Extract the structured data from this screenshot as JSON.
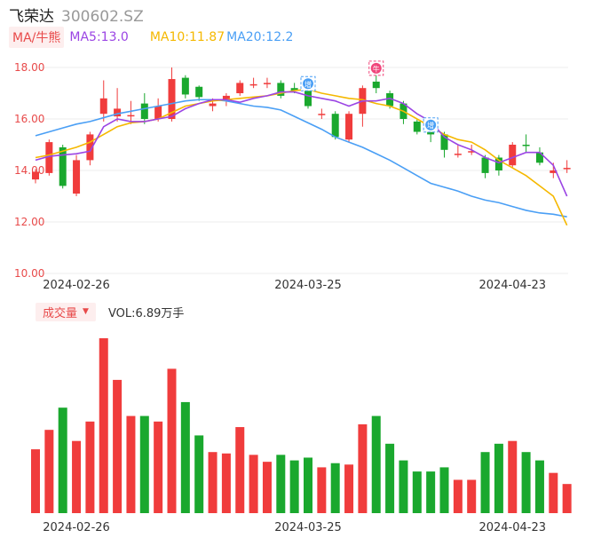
{
  "header": {
    "name": "飞荣达",
    "code": "300602.SZ"
  },
  "ma_legend": {
    "badge": "MA/牛熊",
    "items": [
      {
        "label": "MA5:13.0",
        "color": "#9b45e4"
      },
      {
        "label": "MA10:11.87",
        "color": "#f5b800"
      },
      {
        "label": "MA20:12.2",
        "color": "#4a9ff5"
      }
    ]
  },
  "vol_legend": {
    "badge": "成交量",
    "caret": "▼",
    "text": "VOL:6.89万手"
  },
  "markers": [
    {
      "label": "增",
      "index": 20,
      "color": "#4a9ff5"
    },
    {
      "label": "牛",
      "index": 25,
      "color": "#f0457a"
    },
    {
      "label": "增",
      "index": 29,
      "color": "#4a9ff5"
    }
  ],
  "colors": {
    "up": "#f03c3c",
    "down": "#1aa82e",
    "grid": "#eeeeee",
    "axis_label_price": "#e84a4a",
    "axis_label_date": "#333333"
  },
  "chart_data": {
    "type": "candlestick",
    "y_axis": {
      "min": 10,
      "max": 18,
      "ticks": [
        "10.00",
        "12.00",
        "14.00",
        "16.00",
        "18.00"
      ]
    },
    "x_ticks": [
      {
        "label": "2024-02-26",
        "index": 3
      },
      {
        "label": "2024-03-25",
        "index": 20
      },
      {
        "label": "2024-04-23",
        "index": 35
      }
    ],
    "candles": [
      {
        "o": 13.65,
        "c": 13.95,
        "h": 14.05,
        "l": 13.5,
        "v": 2.3
      },
      {
        "o": 13.9,
        "c": 15.1,
        "h": 15.2,
        "l": 13.8,
        "v": 3.0
      },
      {
        "o": 14.9,
        "c": 13.4,
        "h": 15.0,
        "l": 13.3,
        "v": 3.8
      },
      {
        "o": 13.1,
        "c": 14.4,
        "h": 14.6,
        "l": 13.0,
        "v": 2.6
      },
      {
        "o": 14.4,
        "c": 15.4,
        "h": 15.5,
        "l": 14.2,
        "v": 3.3
      },
      {
        "o": 16.2,
        "c": 16.8,
        "h": 17.5,
        "l": 15.9,
        "v": 6.3
      },
      {
        "o": 16.1,
        "c": 16.4,
        "h": 17.2,
        "l": 15.9,
        "v": 4.8
      },
      {
        "o": 16.1,
        "c": 16.15,
        "h": 16.7,
        "l": 15.8,
        "v": 3.5
      },
      {
        "o": 16.6,
        "c": 16.0,
        "h": 17.0,
        "l": 15.8,
        "v": 3.5
      },
      {
        "o": 16.0,
        "c": 16.5,
        "h": 16.8,
        "l": 15.9,
        "v": 3.3
      },
      {
        "o": 16.0,
        "c": 17.55,
        "h": 18.0,
        "l": 15.9,
        "v": 5.2
      },
      {
        "o": 17.6,
        "c": 16.95,
        "h": 17.7,
        "l": 16.8,
        "v": 4.0
      },
      {
        "o": 17.25,
        "c": 16.85,
        "h": 17.3,
        "l": 16.7,
        "v": 2.8
      },
      {
        "o": 16.5,
        "c": 16.6,
        "h": 16.8,
        "l": 16.3,
        "v": 2.2
      },
      {
        "o": 16.7,
        "c": 16.9,
        "h": 17.0,
        "l": 16.5,
        "v": 2.15
      },
      {
        "o": 17.0,
        "c": 17.4,
        "h": 17.5,
        "l": 16.9,
        "v": 3.1
      },
      {
        "o": 17.35,
        "c": 17.35,
        "h": 17.6,
        "l": 17.2,
        "v": 2.1
      },
      {
        "o": 17.35,
        "c": 17.4,
        "h": 17.6,
        "l": 17.2,
        "v": 1.85
      },
      {
        "o": 17.4,
        "c": 16.9,
        "h": 17.5,
        "l": 16.8,
        "v": 2.1
      },
      {
        "o": 17.2,
        "c": 17.1,
        "h": 17.4,
        "l": 17.0,
        "v": 1.9
      },
      {
        "o": 17.2,
        "c": 16.5,
        "h": 17.3,
        "l": 16.4,
        "v": 2.0
      },
      {
        "o": 16.15,
        "c": 16.2,
        "h": 16.4,
        "l": 16.0,
        "v": 1.65
      },
      {
        "o": 16.2,
        "c": 15.3,
        "h": 16.3,
        "l": 15.2,
        "v": 1.8
      },
      {
        "o": 15.2,
        "c": 16.2,
        "h": 16.3,
        "l": 15.1,
        "v": 1.75
      },
      {
        "o": 16.2,
        "c": 17.2,
        "h": 17.3,
        "l": 15.7,
        "v": 3.2
      },
      {
        "o": 17.45,
        "c": 17.2,
        "h": 17.9,
        "l": 17.0,
        "v": 3.5
      },
      {
        "o": 17.0,
        "c": 16.5,
        "h": 17.1,
        "l": 16.4,
        "v": 2.5
      },
      {
        "o": 16.6,
        "c": 16.0,
        "h": 16.7,
        "l": 15.8,
        "v": 1.9
      },
      {
        "o": 15.9,
        "c": 15.5,
        "h": 16.0,
        "l": 15.4,
        "v": 1.5
      },
      {
        "o": 15.55,
        "c": 15.4,
        "h": 15.7,
        "l": 15.1,
        "v": 1.5
      },
      {
        "o": 15.4,
        "c": 14.8,
        "h": 15.5,
        "l": 14.5,
        "v": 1.65
      },
      {
        "o": 14.6,
        "c": 14.65,
        "h": 15.0,
        "l": 14.5,
        "v": 1.2
      },
      {
        "o": 14.7,
        "c": 14.75,
        "h": 15.0,
        "l": 14.6,
        "v": 1.2
      },
      {
        "o": 14.5,
        "c": 13.9,
        "h": 14.6,
        "l": 13.7,
        "v": 2.2
      },
      {
        "o": 14.5,
        "c": 14.0,
        "h": 14.6,
        "l": 13.8,
        "v": 2.5
      },
      {
        "o": 14.2,
        "c": 15.0,
        "h": 15.1,
        "l": 14.1,
        "v": 2.6
      },
      {
        "o": 15.0,
        "c": 14.95,
        "h": 15.4,
        "l": 14.7,
        "v": 2.2
      },
      {
        "o": 14.7,
        "c": 14.3,
        "h": 14.9,
        "l": 14.2,
        "v": 1.9
      },
      {
        "o": 13.9,
        "c": 14.0,
        "h": 14.3,
        "l": 13.7,
        "v": 1.45
      },
      {
        "o": 14.05,
        "c": 14.1,
        "h": 14.4,
        "l": 13.9,
        "v": 1.05
      }
    ],
    "ma5": [
      14.4,
      14.55,
      14.6,
      14.65,
      14.75,
      15.7,
      16.0,
      15.9,
      15.9,
      16.0,
      16.1,
      16.4,
      16.6,
      16.75,
      16.75,
      16.65,
      16.8,
      16.9,
      17.05,
      17.05,
      16.9,
      16.8,
      16.7,
      16.5,
      16.7,
      16.7,
      16.8,
      16.6,
      16.2,
      15.9,
      15.3,
      15.0,
      14.8,
      14.5,
      14.3,
      14.5,
      14.7,
      14.7,
      14.2,
      13.0
    ],
    "ma10": [
      14.5,
      14.6,
      14.75,
      14.9,
      15.1,
      15.4,
      15.7,
      15.85,
      15.9,
      16.0,
      16.25,
      16.5,
      16.6,
      16.7,
      16.75,
      16.8,
      16.85,
      16.9,
      17.0,
      17.1,
      17.15,
      17.0,
      16.9,
      16.8,
      16.75,
      16.6,
      16.5,
      16.3,
      16.0,
      15.7,
      15.4,
      15.2,
      15.1,
      14.8,
      14.4,
      14.1,
      13.8,
      13.4,
      13.0,
      11.87
    ],
    "ma20": [
      15.35,
      15.5,
      15.65,
      15.8,
      15.9,
      16.05,
      16.2,
      16.3,
      16.4,
      16.5,
      16.6,
      16.7,
      16.75,
      16.75,
      16.7,
      16.6,
      16.5,
      16.45,
      16.35,
      16.1,
      15.85,
      15.6,
      15.3,
      15.1,
      14.9,
      14.65,
      14.4,
      14.1,
      13.8,
      13.5,
      13.35,
      13.2,
      13.0,
      12.85,
      12.75,
      12.6,
      12.45,
      12.35,
      12.3,
      12.2
    ]
  }
}
